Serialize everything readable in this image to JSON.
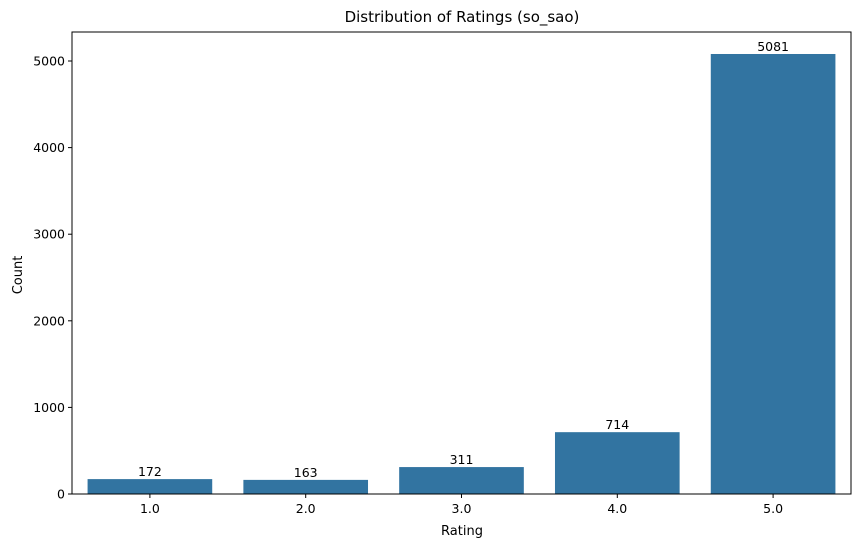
{
  "chart_data": {
    "type": "bar",
    "title": "Distribution of Ratings (so_sao)",
    "xlabel": "Rating",
    "ylabel": "Count",
    "categories": [
      "1.0",
      "2.0",
      "3.0",
      "4.0",
      "5.0"
    ],
    "values": [
      172,
      163,
      311,
      714,
      5081
    ],
    "data_labels": [
      "172",
      "163",
      "311",
      "714",
      "5081"
    ],
    "ylim": [
      0,
      5335
    ],
    "yticks": [
      0,
      1000,
      2000,
      3000,
      4000,
      5000
    ],
    "ytick_labels": [
      "0",
      "1000",
      "2000",
      "3000",
      "4000",
      "5000"
    ],
    "grid": false,
    "legend": "none",
    "bar_color": "#3274a1"
  }
}
